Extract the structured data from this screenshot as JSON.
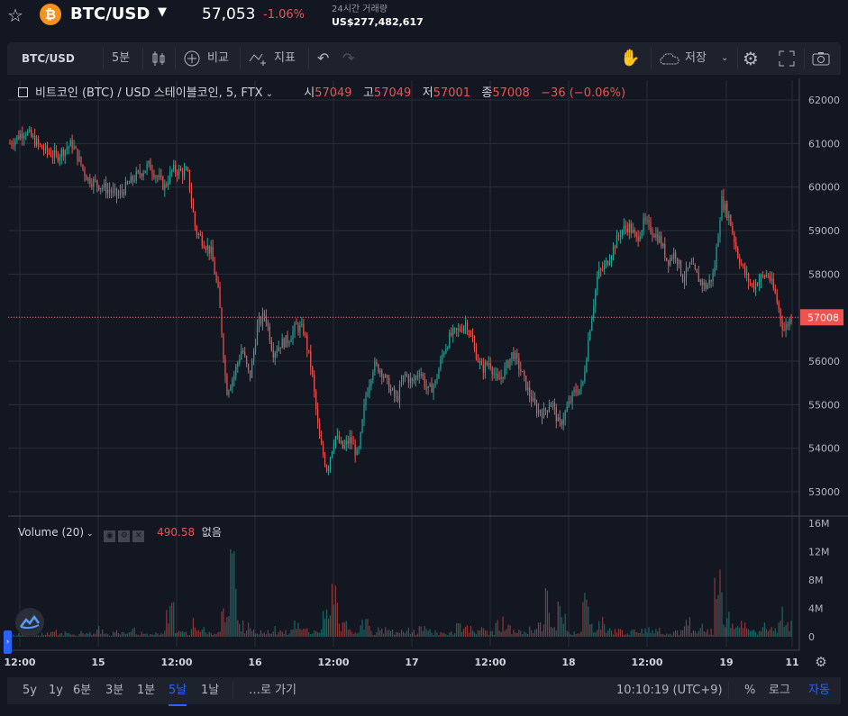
{
  "header": {
    "favorite_icon": "star-icon",
    "coin_icon": "bitcoin-icon",
    "coin_symbol": "₿",
    "pair": "BTC/USD",
    "dropdown_icon": "caret-down-icon",
    "price": "57,053",
    "change": "-1.06%",
    "volume_label": "24시간 거래량",
    "volume_value": "US$277,482,617"
  },
  "toolbar": {
    "symbol": "BTC/USD",
    "interval": "5분",
    "candle_icon": "candlestick-icon",
    "compare_icon": "plus-circle-icon",
    "compare_label": "비교",
    "indicator_icon": "indicator-icon",
    "indicator_label": "지표",
    "undo_icon": "undo-icon",
    "redo_icon": "redo-icon",
    "hand_icon": "hand-icon",
    "cloud_icon": "cloud-icon",
    "save_label": "저장",
    "settings_icon": "gear-icon",
    "fullscreen_icon": "fullscreen-icon",
    "screenshot_icon": "camera-icon"
  },
  "legend": {
    "title": "비트코인 (BTC) / USD 스테이블코인, 5, FTX",
    "open_label": "시",
    "open": "57049",
    "high_label": "고",
    "high": "57049",
    "low_label": "저",
    "low": "57001",
    "close_label": "종",
    "close": "57008",
    "change": "−36 (−0.06%)"
  },
  "volume_legend": {
    "title": "Volume (20)",
    "value": "490.58",
    "extra": "없음"
  },
  "chart_data": {
    "type": "candlestick",
    "price_axis": [
      "62000",
      "61000",
      "60000",
      "59000",
      "58000",
      "57000",
      "56000",
      "55000",
      "54000",
      "53000"
    ],
    "price_ylim": [
      52500,
      62500
    ],
    "current_price": "57008",
    "volume_axis": [
      "16M",
      "12M",
      "8M",
      "4M",
      "0"
    ],
    "volume_ylim": [
      0,
      16
    ],
    "time_axis": [
      "12:00",
      "15",
      "12:00",
      "16",
      "12:00",
      "17",
      "12:00",
      "18",
      "12:00",
      "19",
      "11"
    ],
    "close_path": [
      [
        0,
        61000
      ],
      [
        2,
        61300
      ],
      [
        4,
        60900
      ],
      [
        6,
        60700
      ],
      [
        8,
        61000
      ],
      [
        10,
        60200
      ],
      [
        12,
        60000
      ],
      [
        14,
        59800
      ],
      [
        16,
        60200
      ],
      [
        18,
        60500
      ],
      [
        20,
        60000
      ],
      [
        21,
        60400
      ],
      [
        23,
        60300
      ],
      [
        24,
        59000
      ],
      [
        26,
        58500
      ],
      [
        27,
        57500
      ],
      [
        28,
        55300
      ],
      [
        29,
        55700
      ],
      [
        30,
        56300
      ],
      [
        31,
        55600
      ],
      [
        32,
        56800
      ],
      [
        33,
        57100
      ],
      [
        34,
        56200
      ],
      [
        35,
        56400
      ],
      [
        36,
        56500
      ],
      [
        37,
        56800
      ],
      [
        38,
        56700
      ],
      [
        39,
        55800
      ],
      [
        40,
        54200
      ],
      [
        41,
        53500
      ],
      [
        42,
        54300
      ],
      [
        43,
        54000
      ],
      [
        44,
        54200
      ],
      [
        45,
        53800
      ],
      [
        46,
        55200
      ],
      [
        47,
        55900
      ],
      [
        48,
        55800
      ],
      [
        49,
        55400
      ],
      [
        50,
        55100
      ],
      [
        51,
        55700
      ],
      [
        52,
        55500
      ],
      [
        53,
        55800
      ],
      [
        54,
        55300
      ],
      [
        55,
        55500
      ],
      [
        56,
        56200
      ],
      [
        57,
        56600
      ],
      [
        58,
        56700
      ],
      [
        59,
        56900
      ],
      [
        60,
        56300
      ],
      [
        61,
        55800
      ],
      [
        62,
        56000
      ],
      [
        63,
        55500
      ],
      [
        64,
        55800
      ],
      [
        65,
        56200
      ],
      [
        66,
        55800
      ],
      [
        67,
        55300
      ],
      [
        68,
        54900
      ],
      [
        69,
        54800
      ],
      [
        70,
        55100
      ],
      [
        71,
        54500
      ],
      [
        72,
        54900
      ],
      [
        73,
        55300
      ],
      [
        74,
        55400
      ],
      [
        75,
        56800
      ],
      [
        76,
        58000
      ],
      [
        77,
        58200
      ],
      [
        78,
        58600
      ],
      [
        79,
        59000
      ],
      [
        80,
        59100
      ],
      [
        81,
        58800
      ],
      [
        82,
        59200
      ],
      [
        83,
        59000
      ],
      [
        84,
        58800
      ],
      [
        85,
        58300
      ],
      [
        86,
        58500
      ],
      [
        87,
        57900
      ],
      [
        88,
        58200
      ],
      [
        89,
        57900
      ],
      [
        90,
        57700
      ],
      [
        91,
        58000
      ],
      [
        92,
        59700
      ],
      [
        93,
        59300
      ],
      [
        94,
        58500
      ],
      [
        95,
        58000
      ],
      [
        96,
        57700
      ],
      [
        97,
        57900
      ],
      [
        98,
        58000
      ],
      [
        99,
        57500
      ],
      [
        100,
        56700
      ],
      [
        101,
        57008
      ]
    ],
    "volume_bars": [
      0.3,
      0.5,
      0.8,
      0.4,
      0.6,
      1.0,
      0.5,
      0.7,
      0.4,
      0.9,
      0.6,
      1.5,
      0.5,
      0.8,
      0.6,
      1.2,
      0.7,
      0.4,
      0.6,
      0.9,
      4.5,
      1.0,
      0.8,
      3.0,
      1.2,
      0.7,
      1.0,
      4.0,
      12.5,
      2.5,
      1.8,
      1.2,
      0.9,
      1.5,
      0.8,
      1.0,
      2.0,
      1.2,
      0.9,
      1.4,
      3.5,
      7.5,
      2.0,
      1.0,
      1.5,
      2.5,
      0.8,
      1.2,
      1.0,
      0.7,
      1.3,
      0.9,
      1.5,
      1.1,
      0.8,
      0.6,
      1.0,
      2.2,
      1.5,
      0.9,
      1.2,
      0.8,
      2.6,
      1.6,
      1.0,
      0.9,
      1.3,
      2.0,
      6.5,
      1.4,
      4.5,
      0.8,
      1.0,
      6.0,
      1.9,
      2.5,
      1.2,
      1.1,
      1.0,
      0.9,
      1.4,
      1.2,
      1.5,
      1.0,
      0.8,
      0.9,
      3.0,
      0.9,
      2.0,
      1.0,
      9.5,
      3.5,
      1.8,
      3.0,
      1.2,
      1.0,
      2.0,
      1.5,
      4.6,
      2.0
    ]
  }
}
